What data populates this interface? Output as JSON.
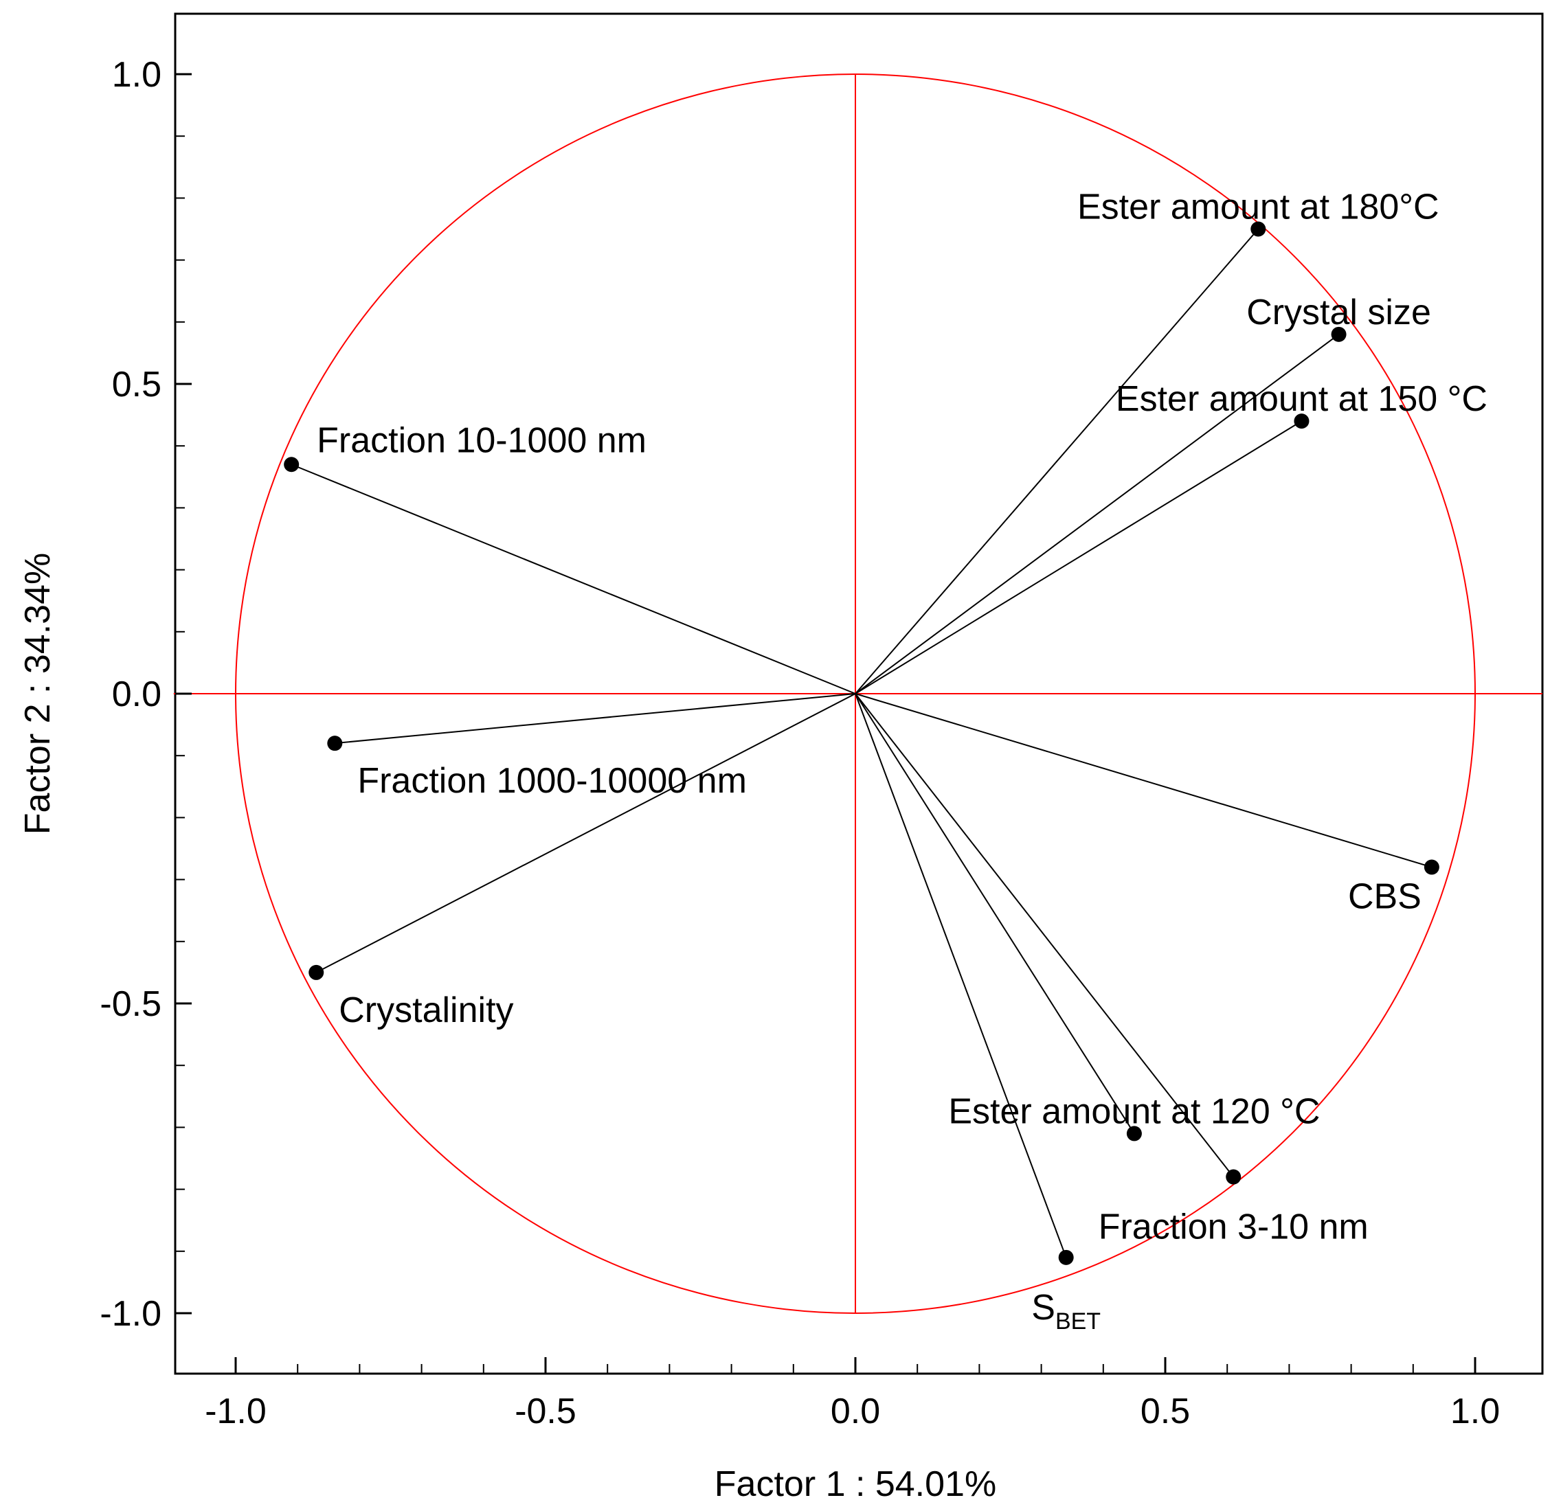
{
  "chart_data": {
    "type": "scatter",
    "subtype": "pca-correlation-circle",
    "title": "",
    "xlabel": "Factor 1 : 54.01%",
    "ylabel": "Factor 2 : 34.34%",
    "xlim": [
      -1.1,
      1.1
    ],
    "ylim": [
      -1.1,
      1.1
    ],
    "xticks": [
      -1.0,
      -0.5,
      0.0,
      0.5,
      1.0
    ],
    "yticks": [
      -1.0,
      -0.5,
      0.0,
      0.5,
      1.0
    ],
    "tick_labels": [
      "-1.0",
      "-0.5",
      "0.0",
      "0.5",
      "1.0"
    ],
    "unit_circle_color": "#ff0000",
    "vector_color": "#000000",
    "points": [
      {
        "label": "Ester amount at 180°C",
        "x": 0.65,
        "y": 0.75,
        "label_anchor": "above-center"
      },
      {
        "label": "Crystal size",
        "x": 0.78,
        "y": 0.58,
        "label_anchor": "above-center"
      },
      {
        "label": "Ester amount at 150 °C",
        "x": 0.72,
        "y": 0.44,
        "label_anchor": "above-center"
      },
      {
        "label": "Fraction 10-1000 nm",
        "x": -0.91,
        "y": 0.37,
        "label_anchor": "right"
      },
      {
        "label": "Fraction 1000-10000 nm",
        "x": -0.84,
        "y": -0.08,
        "label_anchor": "below-right"
      },
      {
        "label": "Crystalinity",
        "x": -0.87,
        "y": -0.45,
        "label_anchor": "below-right"
      },
      {
        "label": "CBS",
        "x": 0.93,
        "y": -0.28,
        "label_anchor": "below-left"
      },
      {
        "label": "Ester amount at 120 °C",
        "x": 0.45,
        "y": -0.71,
        "label_anchor": "above-center"
      },
      {
        "label": "Fraction 3-10 nm",
        "x": 0.61,
        "y": -0.78,
        "label_anchor": "below-center"
      },
      {
        "label": "S",
        "label_subscript": "BET",
        "x": 0.34,
        "y": -0.91,
        "label_anchor": "below-center"
      }
    ]
  }
}
